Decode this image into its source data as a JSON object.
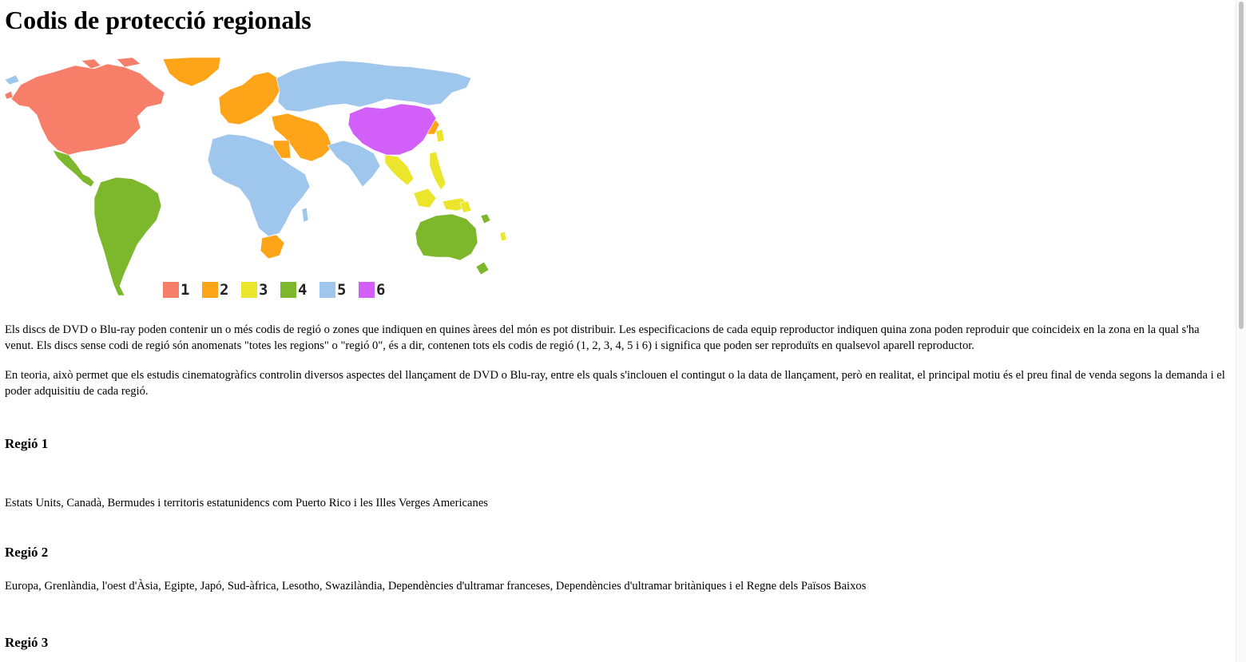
{
  "page": {
    "title": "Codis de protecció regionals"
  },
  "map": {
    "legend": [
      {
        "label": "1",
        "color": "#f77e68"
      },
      {
        "label": "2",
        "color": "#fea419"
      },
      {
        "label": "3",
        "color": "#ebe62b"
      },
      {
        "label": "4",
        "color": "#7cb72c"
      },
      {
        "label": "5",
        "color": "#9fc7ee"
      },
      {
        "label": "6",
        "color": "#d35ff9"
      }
    ]
  },
  "intro": {
    "paragraph1": "Els discs de DVD o Blu-ray poden contenir un o més codis de regió o zones que indiquen en quines àrees del món es pot distribuir. Les especificacions de cada equip reproductor indiquen quina zona poden reproduir que coincideix en la zona en la qual s'ha venut. Els discs sense codi de regió són anomenats \"totes les regions\" o \"regió 0\", és a dir, contenen tots els codis de regió (1, 2, 3, 4, 5 i 6) i significa que poden ser reproduïts en qualsevol aparell reproductor.",
    "paragraph2": "En teoria, això permet que els estudis cinematogràfics controlin diversos aspectes del llançament de DVD o Blu-ray, entre els quals s'inclouen el contingut o la data de llançament, però en realitat, el principal motiu és el preu final de venda segons la demanda i el poder adquisitiu de cada regió."
  },
  "regions": [
    {
      "heading": "Regió 1",
      "text": "Estats Units, Canadà, Bermudes i territoris estatunidencs com Puerto Rico i les Illes Verges Americanes"
    },
    {
      "heading": "Regió 2",
      "text": "Europa, Grenlàndia, l'oest d'Àsia, Egipte, Japó, Sud-àfrica, Lesotho, Swazilàndia, Dependències d'ultramar franceses, Dependències d'ultramar britàniques i el Regne dels Països Baixos"
    },
    {
      "heading": "Regió 3",
      "text": ""
    }
  ]
}
